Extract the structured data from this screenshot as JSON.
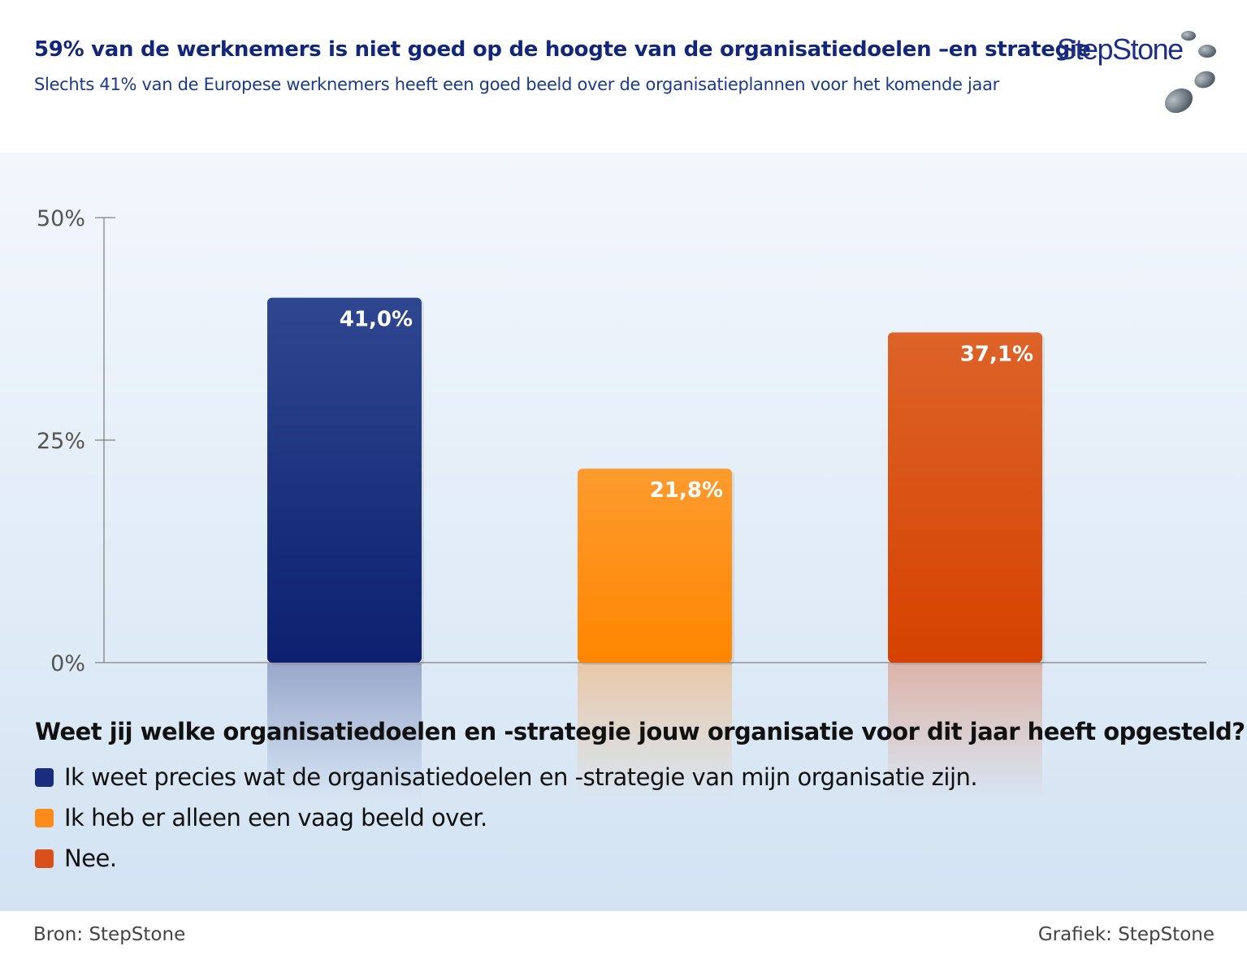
{
  "header": {
    "title": "59% van de werknemers is niet goed op de hoogte van de organisatiedoelen –en strategie",
    "subtitle": "Slechts 41% van de Europese werknemers heeft een goed beeld over de organisatieplannen voor het komende jaar",
    "logo_text": "StepStone"
  },
  "chart_data": {
    "type": "bar",
    "title": "59% van de werknemers is niet goed op de hoogte van de organisatiedoelen –en strategie",
    "categories": [
      "Ik weet precies wat de organisatiedoelen en -strategie van mijn organisatie zijn.",
      "Ik heb er alleen een vaag beeld over.",
      "Nee."
    ],
    "values": [
      41.0,
      21.8,
      37.1
    ],
    "value_labels": [
      "41,0%",
      "21,8%",
      "37,1%"
    ],
    "colors": [
      "#1a2d7c",
      "#fb8c1c",
      "#d9501a"
    ],
    "color_tops": [
      "#2f4790",
      "#fd9b2e",
      "#dd6329"
    ],
    "color_bottoms": [
      "#0c206f",
      "#ff8600",
      "#d64200"
    ],
    "ylim": [
      0,
      50
    ],
    "yticks": [
      0,
      25,
      50
    ],
    "ytick_labels": [
      "0%",
      "25%",
      "50%"
    ],
    "xlabel": "Weet jij welke organisatiedoelen en -strategie jouw organisatie voor dit jaar heeft opgesteld?",
    "ylabel": "",
    "legend_position": "bottom-left",
    "grid": false
  },
  "footer": {
    "source": "Bron: StepStone",
    "credit": "Grafiek: StepStone"
  }
}
